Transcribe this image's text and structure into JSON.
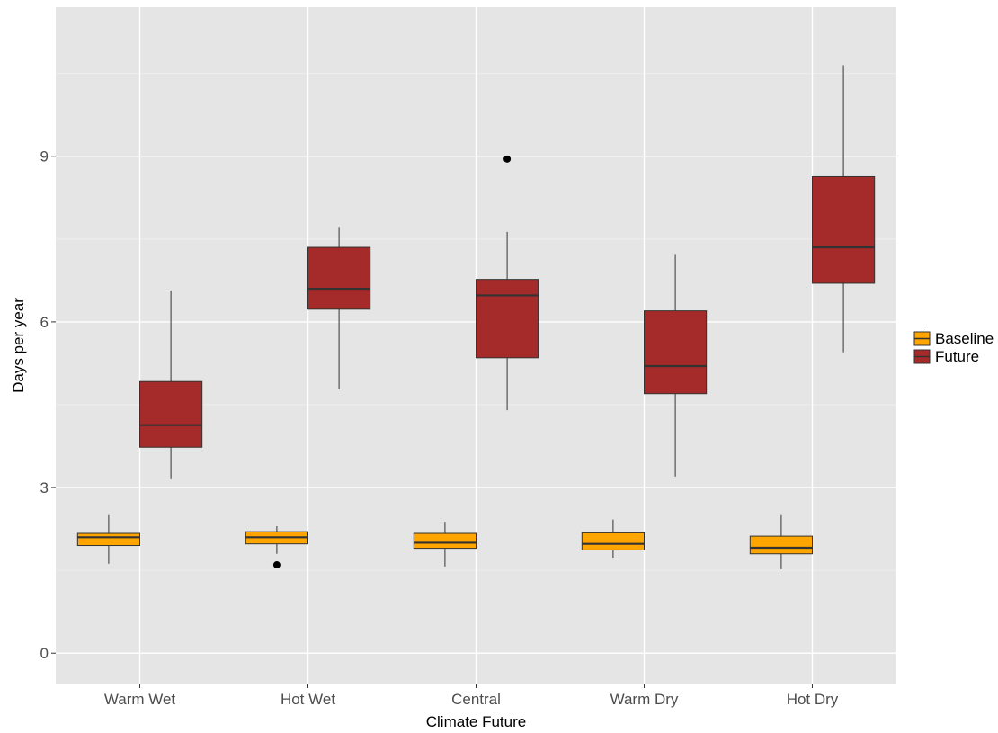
{
  "chart_data": {
    "type": "boxplot",
    "xlabel": "Climate Future",
    "ylabel": "Days per year",
    "ylim": [
      -0.55,
      11.7
    ],
    "yticks": [
      0,
      3,
      6,
      9
    ],
    "categories": [
      "Warm Wet",
      "Hot Wet",
      "Central",
      "Warm Dry",
      "Hot Dry"
    ],
    "grid": true,
    "legend_position": "right",
    "colors": {
      "panel_background": "#e5e5e5",
      "grid_major": "#ffffff",
      "grid_minor": "#f0f0f0",
      "box_outline": "#333333",
      "Baseline": "#FFA500",
      "Future": "#A52A2A"
    },
    "series": [
      {
        "name": "Baseline",
        "boxes": [
          {
            "category": "Warm Wet",
            "min": 1.62,
            "q1": 1.95,
            "median": 2.1,
            "q3": 2.17,
            "max": 2.5,
            "outliers": []
          },
          {
            "category": "Hot Wet",
            "min": 1.8,
            "q1": 1.98,
            "median": 2.1,
            "q3": 2.2,
            "max": 2.3,
            "outliers": [
              1.6
            ]
          },
          {
            "category": "Central",
            "min": 1.57,
            "q1": 1.9,
            "median": 2.0,
            "q3": 2.17,
            "max": 2.38,
            "outliers": []
          },
          {
            "category": "Warm Dry",
            "min": 1.73,
            "q1": 1.87,
            "median": 1.98,
            "q3": 2.18,
            "max": 2.42,
            "outliers": []
          },
          {
            "category": "Hot Dry",
            "min": 1.52,
            "q1": 1.8,
            "median": 1.91,
            "q3": 2.12,
            "max": 2.5,
            "outliers": []
          }
        ]
      },
      {
        "name": "Future",
        "boxes": [
          {
            "category": "Warm Wet",
            "min": 3.15,
            "q1": 3.73,
            "median": 4.13,
            "q3": 4.92,
            "max": 6.57,
            "outliers": []
          },
          {
            "category": "Hot Wet",
            "min": 4.78,
            "q1": 6.23,
            "median": 6.6,
            "q3": 7.35,
            "max": 7.72,
            "outliers": []
          },
          {
            "category": "Central",
            "min": 4.4,
            "q1": 5.35,
            "median": 6.48,
            "q3": 6.77,
            "max": 7.63,
            "outliers": [
              8.95
            ]
          },
          {
            "category": "Warm Dry",
            "min": 3.2,
            "q1": 4.7,
            "median": 5.2,
            "q3": 6.2,
            "max": 7.23,
            "outliers": []
          },
          {
            "category": "Hot Dry",
            "min": 5.45,
            "q1": 6.7,
            "median": 7.35,
            "q3": 8.63,
            "max": 10.65,
            "outliers": []
          }
        ]
      }
    ]
  }
}
